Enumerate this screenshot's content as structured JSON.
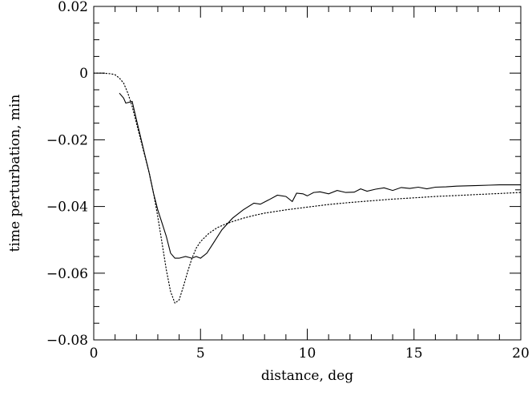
{
  "chart_data": {
    "type": "line",
    "title": "",
    "xlabel": "distance, deg",
    "ylabel": "time perturbation, min",
    "xlim": [
      0,
      20
    ],
    "ylim": [
      -0.08,
      0.02
    ],
    "grid": false,
    "legend": "none",
    "x_ticks": [
      0,
      5,
      10,
      15,
      20
    ],
    "x_tick_labels": [
      "0",
      "5",
      "10",
      "15",
      "20"
    ],
    "y_ticks": [
      -0.08,
      -0.06,
      -0.04,
      -0.02,
      0,
      0.02
    ],
    "y_tick_labels": [
      "−0.08",
      "−0.06",
      "−0.04",
      "−0.02",
      "0",
      "0.02"
    ],
    "series": [
      {
        "style": "solid",
        "color": "#000000",
        "x": [
          1.2,
          1.4,
          1.5,
          1.8,
          2.0,
          2.3,
          2.6,
          2.8,
          3.0,
          3.2,
          3.4,
          3.6,
          3.8,
          4.0,
          4.3,
          4.6,
          4.8,
          5.0,
          5.3,
          5.6,
          6.0,
          6.5,
          7.0,
          7.5,
          7.8,
          8.2,
          8.6,
          9.0,
          9.3,
          9.5,
          9.8,
          10.0,
          10.3,
          10.6,
          11.0,
          11.4,
          11.8,
          12.2,
          12.5,
          12.8,
          13.2,
          13.6,
          14.0,
          14.4,
          14.8,
          15.2,
          15.6,
          16.0,
          16.5,
          17.0,
          17.5,
          18.0,
          18.5,
          19.0,
          19.5,
          20.0
        ],
        "y": [
          -0.006,
          -0.0075,
          -0.009,
          -0.0085,
          -0.014,
          -0.022,
          -0.03,
          -0.036,
          -0.041,
          -0.045,
          -0.049,
          -0.054,
          -0.0555,
          -0.0555,
          -0.055,
          -0.0555,
          -0.055,
          -0.0555,
          -0.054,
          -0.051,
          -0.047,
          -0.0435,
          -0.041,
          -0.039,
          -0.0393,
          -0.038,
          -0.0366,
          -0.037,
          -0.0385,
          -0.036,
          -0.0362,
          -0.0368,
          -0.0358,
          -0.0356,
          -0.0362,
          -0.0352,
          -0.0358,
          -0.0357,
          -0.0347,
          -0.0354,
          -0.0348,
          -0.0344,
          -0.0352,
          -0.0343,
          -0.0346,
          -0.0342,
          -0.0347,
          -0.0342,
          -0.0341,
          -0.0339,
          -0.0338,
          -0.0337,
          -0.0336,
          -0.0335,
          -0.0335,
          -0.0335
        ]
      },
      {
        "style": "dotted",
        "color": "#000000",
        "x": [
          0.0,
          0.4,
          0.8,
          1.0,
          1.2,
          1.4,
          1.6,
          1.8,
          2.0,
          2.2,
          2.4,
          2.6,
          2.8,
          3.0,
          3.2,
          3.4,
          3.6,
          3.8,
          4.0,
          4.2,
          4.4,
          4.6,
          4.8,
          5.0,
          5.4,
          5.8,
          6.2,
          6.6,
          7.0,
          7.5,
          8.0,
          9.0,
          10.0,
          11.0,
          12.0,
          13.0,
          14.0,
          15.0,
          16.0,
          17.0,
          18.0,
          19.0,
          20.0
        ],
        "y": [
          0.0,
          0.0,
          -0.0002,
          -0.0005,
          -0.0015,
          -0.003,
          -0.006,
          -0.01,
          -0.015,
          -0.02,
          -0.025,
          -0.03,
          -0.036,
          -0.043,
          -0.051,
          -0.059,
          -0.0655,
          -0.069,
          -0.068,
          -0.064,
          -0.0595,
          -0.0555,
          -0.0525,
          -0.0505,
          -0.048,
          -0.0463,
          -0.0452,
          -0.0443,
          -0.0435,
          -0.0427,
          -0.042,
          -0.041,
          -0.0402,
          -0.0394,
          -0.0388,
          -0.0383,
          -0.0378,
          -0.0374,
          -0.037,
          -0.0367,
          -0.0364,
          -0.0361,
          -0.0358
        ]
      }
    ]
  }
}
